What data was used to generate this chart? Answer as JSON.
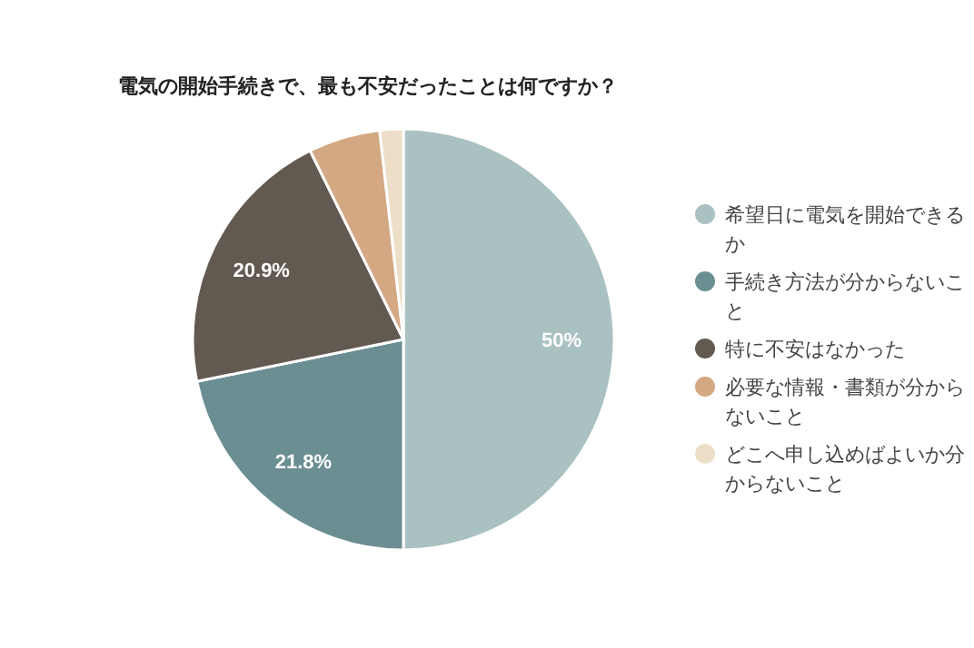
{
  "chart_data": {
    "type": "pie",
    "title": "電気の開始手続きで、最も不安だったことは何ですか？",
    "categories": [
      "希望日に電気を開始できるか",
      "手続き方法が分からないこと",
      "特に不安はなかった",
      "必要な情報・書類が分からないこと",
      "どこへ申し込めばよいか分からないこと"
    ],
    "values": [
      50,
      21.8,
      20.9,
      5.5,
      1.8
    ],
    "colors": [
      "#a9c1c0",
      "#6b8e93",
      "#625950",
      "#d3a883",
      "#eddfc7"
    ],
    "value_labels": [
      "50%",
      "21.8%",
      "20.9%",
      null,
      null
    ],
    "legend": "right"
  }
}
